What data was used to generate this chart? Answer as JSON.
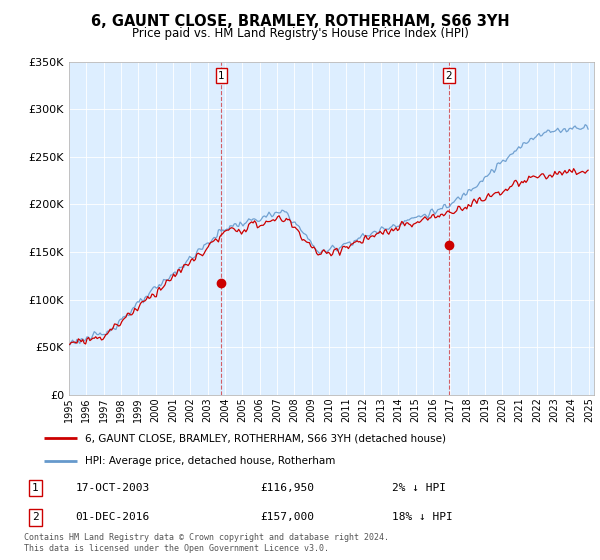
{
  "title": "6, GAUNT CLOSE, BRAMLEY, ROTHERHAM, S66 3YH",
  "subtitle": "Price paid vs. HM Land Registry's House Price Index (HPI)",
  "ylim": [
    0,
    350000
  ],
  "yticks": [
    0,
    50000,
    100000,
    150000,
    200000,
    250000,
    300000,
    350000
  ],
  "ytick_labels": [
    "£0",
    "£50K",
    "£100K",
    "£150K",
    "£200K",
    "£250K",
    "£300K",
    "£350K"
  ],
  "plot_background": "#ddeeff",
  "sale1_date_num": 2003.8,
  "sale1_price": 116950,
  "sale2_date_num": 2016.917,
  "sale2_price": 157000,
  "legend_line1": "6, GAUNT CLOSE, BRAMLEY, ROTHERHAM, S66 3YH (detached house)",
  "legend_line2": "HPI: Average price, detached house, Rotherham",
  "table_row1": [
    "1",
    "17-OCT-2003",
    "£116,950",
    "2% ↓ HPI"
  ],
  "table_row2": [
    "2",
    "01-DEC-2016",
    "£157,000",
    "18% ↓ HPI"
  ],
  "footer": "Contains HM Land Registry data © Crown copyright and database right 2024.\nThis data is licensed under the Open Government Licence v3.0.",
  "hpi_color": "#6699cc",
  "price_color": "#cc0000",
  "marker_color": "#cc0000",
  "vline_color": "#cc0000"
}
